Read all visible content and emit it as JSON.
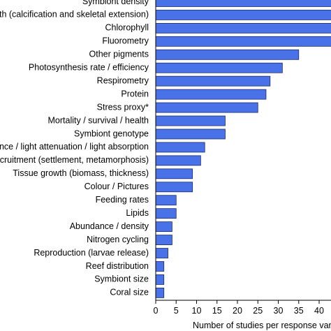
{
  "chart_data": {
    "type": "bar",
    "orientation": "horizontal",
    "categories": [
      "Symbiont density",
      "Growth (calcification and skeletal extension)",
      "Chlorophyll",
      "Fluorometry",
      "Other pigments",
      "Photosynthesis rate / efficiency",
      "Respirometry",
      "Protein",
      "Stress proxy*",
      "Mortality / survival / health",
      "Symbiont genotype",
      "Reflectance / light attenuation / light absorption",
      "Recruitment (settlement, metamorphosis)",
      "Tissue growth (biomass, thickness)",
      "Colour / Pictures",
      "Feeding rates",
      "Lipids",
      "Abundance / density",
      "Nitrogen cycling",
      "Reproduction (larvae release)",
      "Reef distribution",
      "Symbiont size",
      "Coral size"
    ],
    "values": [
      45,
      45,
      45,
      45,
      35,
      31,
      28,
      27,
      25,
      17,
      17,
      12,
      11,
      9,
      9,
      5,
      5,
      4,
      4,
      3,
      2,
      2,
      2
    ],
    "xlabel": "Number of studies per response variable",
    "ylabel": "",
    "xlim": [
      0,
      45
    ],
    "xticks": [
      0,
      5,
      10,
      15,
      20,
      25,
      30,
      35,
      40
    ],
    "grid": false,
    "bar_color": "#4a72e8",
    "bar_edge_color": "#1a2b6b"
  }
}
